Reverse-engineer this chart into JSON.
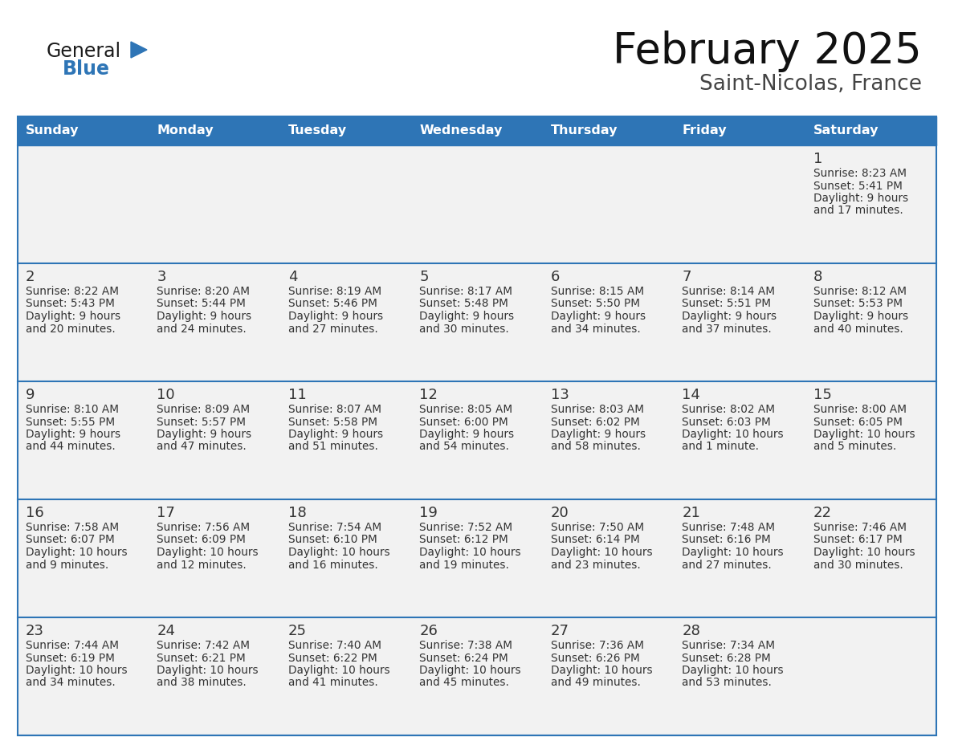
{
  "title": "February 2025",
  "subtitle": "Saint-Nicolas, France",
  "header_bg": "#2E75B6",
  "header_text_color": "#FFFFFF",
  "cell_bg": "#F2F2F2",
  "row_border_color": "#2E75B6",
  "day_number_color": "#333333",
  "info_text_color": "#333333",
  "days_of_week": [
    "Sunday",
    "Monday",
    "Tuesday",
    "Wednesday",
    "Thursday",
    "Friday",
    "Saturday"
  ],
  "calendar": [
    [
      null,
      null,
      null,
      null,
      null,
      null,
      {
        "day": 1,
        "sunrise": "8:23 AM",
        "sunset": "5:41 PM",
        "daylight_line1": "Daylight: 9 hours",
        "daylight_line2": "and 17 minutes."
      }
    ],
    [
      {
        "day": 2,
        "sunrise": "8:22 AM",
        "sunset": "5:43 PM",
        "daylight_line1": "Daylight: 9 hours",
        "daylight_line2": "and 20 minutes."
      },
      {
        "day": 3,
        "sunrise": "8:20 AM",
        "sunset": "5:44 PM",
        "daylight_line1": "Daylight: 9 hours",
        "daylight_line2": "and 24 minutes."
      },
      {
        "day": 4,
        "sunrise": "8:19 AM",
        "sunset": "5:46 PM",
        "daylight_line1": "Daylight: 9 hours",
        "daylight_line2": "and 27 minutes."
      },
      {
        "day": 5,
        "sunrise": "8:17 AM",
        "sunset": "5:48 PM",
        "daylight_line1": "Daylight: 9 hours",
        "daylight_line2": "and 30 minutes."
      },
      {
        "day": 6,
        "sunrise": "8:15 AM",
        "sunset": "5:50 PM",
        "daylight_line1": "Daylight: 9 hours",
        "daylight_line2": "and 34 minutes."
      },
      {
        "day": 7,
        "sunrise": "8:14 AM",
        "sunset": "5:51 PM",
        "daylight_line1": "Daylight: 9 hours",
        "daylight_line2": "and 37 minutes."
      },
      {
        "day": 8,
        "sunrise": "8:12 AM",
        "sunset": "5:53 PM",
        "daylight_line1": "Daylight: 9 hours",
        "daylight_line2": "and 40 minutes."
      }
    ],
    [
      {
        "day": 9,
        "sunrise": "8:10 AM",
        "sunset": "5:55 PM",
        "daylight_line1": "Daylight: 9 hours",
        "daylight_line2": "and 44 minutes."
      },
      {
        "day": 10,
        "sunrise": "8:09 AM",
        "sunset": "5:57 PM",
        "daylight_line1": "Daylight: 9 hours",
        "daylight_line2": "and 47 minutes."
      },
      {
        "day": 11,
        "sunrise": "8:07 AM",
        "sunset": "5:58 PM",
        "daylight_line1": "Daylight: 9 hours",
        "daylight_line2": "and 51 minutes."
      },
      {
        "day": 12,
        "sunrise": "8:05 AM",
        "sunset": "6:00 PM",
        "daylight_line1": "Daylight: 9 hours",
        "daylight_line2": "and 54 minutes."
      },
      {
        "day": 13,
        "sunrise": "8:03 AM",
        "sunset": "6:02 PM",
        "daylight_line1": "Daylight: 9 hours",
        "daylight_line2": "and 58 minutes."
      },
      {
        "day": 14,
        "sunrise": "8:02 AM",
        "sunset": "6:03 PM",
        "daylight_line1": "Daylight: 10 hours",
        "daylight_line2": "and 1 minute."
      },
      {
        "day": 15,
        "sunrise": "8:00 AM",
        "sunset": "6:05 PM",
        "daylight_line1": "Daylight: 10 hours",
        "daylight_line2": "and 5 minutes."
      }
    ],
    [
      {
        "day": 16,
        "sunrise": "7:58 AM",
        "sunset": "6:07 PM",
        "daylight_line1": "Daylight: 10 hours",
        "daylight_line2": "and 9 minutes."
      },
      {
        "day": 17,
        "sunrise": "7:56 AM",
        "sunset": "6:09 PM",
        "daylight_line1": "Daylight: 10 hours",
        "daylight_line2": "and 12 minutes."
      },
      {
        "day": 18,
        "sunrise": "7:54 AM",
        "sunset": "6:10 PM",
        "daylight_line1": "Daylight: 10 hours",
        "daylight_line2": "and 16 minutes."
      },
      {
        "day": 19,
        "sunrise": "7:52 AM",
        "sunset": "6:12 PM",
        "daylight_line1": "Daylight: 10 hours",
        "daylight_line2": "and 19 minutes."
      },
      {
        "day": 20,
        "sunrise": "7:50 AM",
        "sunset": "6:14 PM",
        "daylight_line1": "Daylight: 10 hours",
        "daylight_line2": "and 23 minutes."
      },
      {
        "day": 21,
        "sunrise": "7:48 AM",
        "sunset": "6:16 PM",
        "daylight_line1": "Daylight: 10 hours",
        "daylight_line2": "and 27 minutes."
      },
      {
        "day": 22,
        "sunrise": "7:46 AM",
        "sunset": "6:17 PM",
        "daylight_line1": "Daylight: 10 hours",
        "daylight_line2": "and 30 minutes."
      }
    ],
    [
      {
        "day": 23,
        "sunrise": "7:44 AM",
        "sunset": "6:19 PM",
        "daylight_line1": "Daylight: 10 hours",
        "daylight_line2": "and 34 minutes."
      },
      {
        "day": 24,
        "sunrise": "7:42 AM",
        "sunset": "6:21 PM",
        "daylight_line1": "Daylight: 10 hours",
        "daylight_line2": "and 38 minutes."
      },
      {
        "day": 25,
        "sunrise": "7:40 AM",
        "sunset": "6:22 PM",
        "daylight_line1": "Daylight: 10 hours",
        "daylight_line2": "and 41 minutes."
      },
      {
        "day": 26,
        "sunrise": "7:38 AM",
        "sunset": "6:24 PM",
        "daylight_line1": "Daylight: 10 hours",
        "daylight_line2": "and 45 minutes."
      },
      {
        "day": 27,
        "sunrise": "7:36 AM",
        "sunset": "6:26 PM",
        "daylight_line1": "Daylight: 10 hours",
        "daylight_line2": "and 49 minutes."
      },
      {
        "day": 28,
        "sunrise": "7:34 AM",
        "sunset": "6:28 PM",
        "daylight_line1": "Daylight: 10 hours",
        "daylight_line2": "and 53 minutes."
      },
      null
    ]
  ],
  "logo_text_general": "General",
  "logo_text_blue": "Blue",
  "logo_color_general": "#1a1a1a",
  "logo_color_blue": "#2E75B6",
  "logo_triangle_color": "#2E75B6",
  "fig_width": 11.88,
  "fig_height": 9.18,
  "dpi": 100
}
